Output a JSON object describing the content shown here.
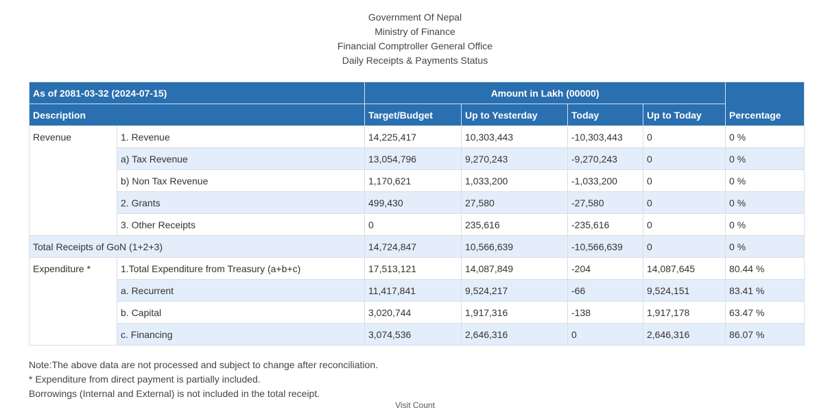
{
  "header": {
    "line1": "Government Of Nepal",
    "line2": "Ministry of Finance",
    "line3": "Financial Comptroller General Office",
    "line4": "Daily Receipts & Payments Status"
  },
  "table": {
    "as_of": "As of 2081-03-32 (2024-07-15)",
    "amount_header": "Amount in Lakh (00000)",
    "columns": {
      "description": "Description",
      "target": "Target/Budget",
      "up_to_yesterday": "Up to Yesterday",
      "today": "Today",
      "up_to_today": "Up to Today",
      "percentage": "Percentage"
    },
    "revenue_group": "Revenue",
    "revenue_rows": [
      {
        "label": "1. Revenue",
        "target": "14,225,417",
        "yesterday": "10,303,443",
        "today": "-10,303,443",
        "up_to_today": "0",
        "percentage": "0 %"
      },
      {
        "label": "a) Tax Revenue",
        "target": "13,054,796",
        "yesterday": "9,270,243",
        "today": "-9,270,243",
        "up_to_today": "0",
        "percentage": "0 %"
      },
      {
        "label": "b) Non Tax Revenue",
        "target": "1,170,621",
        "yesterday": "1,033,200",
        "today": "-1,033,200",
        "up_to_today": "0",
        "percentage": "0 %"
      },
      {
        "label": "2. Grants",
        "target": "499,430",
        "yesterday": "27,580",
        "today": "-27,580",
        "up_to_today": "0",
        "percentage": "0 %"
      },
      {
        "label": "3. Other Receipts",
        "target": "0",
        "yesterday": "235,616",
        "today": "-235,616",
        "up_to_today": "0",
        "percentage": "0 %"
      }
    ],
    "total_row": {
      "label": "Total Receipts of GoN (1+2+3)",
      "target": "14,724,847",
      "yesterday": "10,566,639",
      "today": "-10,566,639",
      "up_to_today": "0",
      "percentage": "0 %"
    },
    "expenditure_group": "Expenditure *",
    "expenditure_rows": [
      {
        "label": "1.Total Expenditure from Treasury (a+b+c)",
        "target": "17,513,121",
        "yesterday": "14,087,849",
        "today": "-204",
        "up_to_today": "14,087,645",
        "percentage": "80.44 %"
      },
      {
        "label": "a. Recurrent",
        "target": "11,417,841",
        "yesterday": "9,524,217",
        "today": "-66",
        "up_to_today": "9,524,151",
        "percentage": "83.41 %"
      },
      {
        "label": "b. Capital",
        "target": "3,020,744",
        "yesterday": "1,917,316",
        "today": "-138",
        "up_to_today": "1,917,178",
        "percentage": "63.47 %"
      },
      {
        "label": "c. Financing",
        "target": "3,074,536",
        "yesterday": "2,646,316",
        "today": "0",
        "up_to_today": "2,646,316",
        "percentage": "86.07 %"
      }
    ]
  },
  "notes": {
    "line1": "Note:The above data are not processed and subject to change after reconciliation.",
    "line2": "* Expenditure from direct payment is partially included.",
    "line3": "Borrowings (Internal and External) is not included in the total receipt."
  },
  "footer": {
    "visit_counter": "Visit Count"
  },
  "colors": {
    "header_blue": "#2a6fb0",
    "stripe": "#e4eefb"
  }
}
